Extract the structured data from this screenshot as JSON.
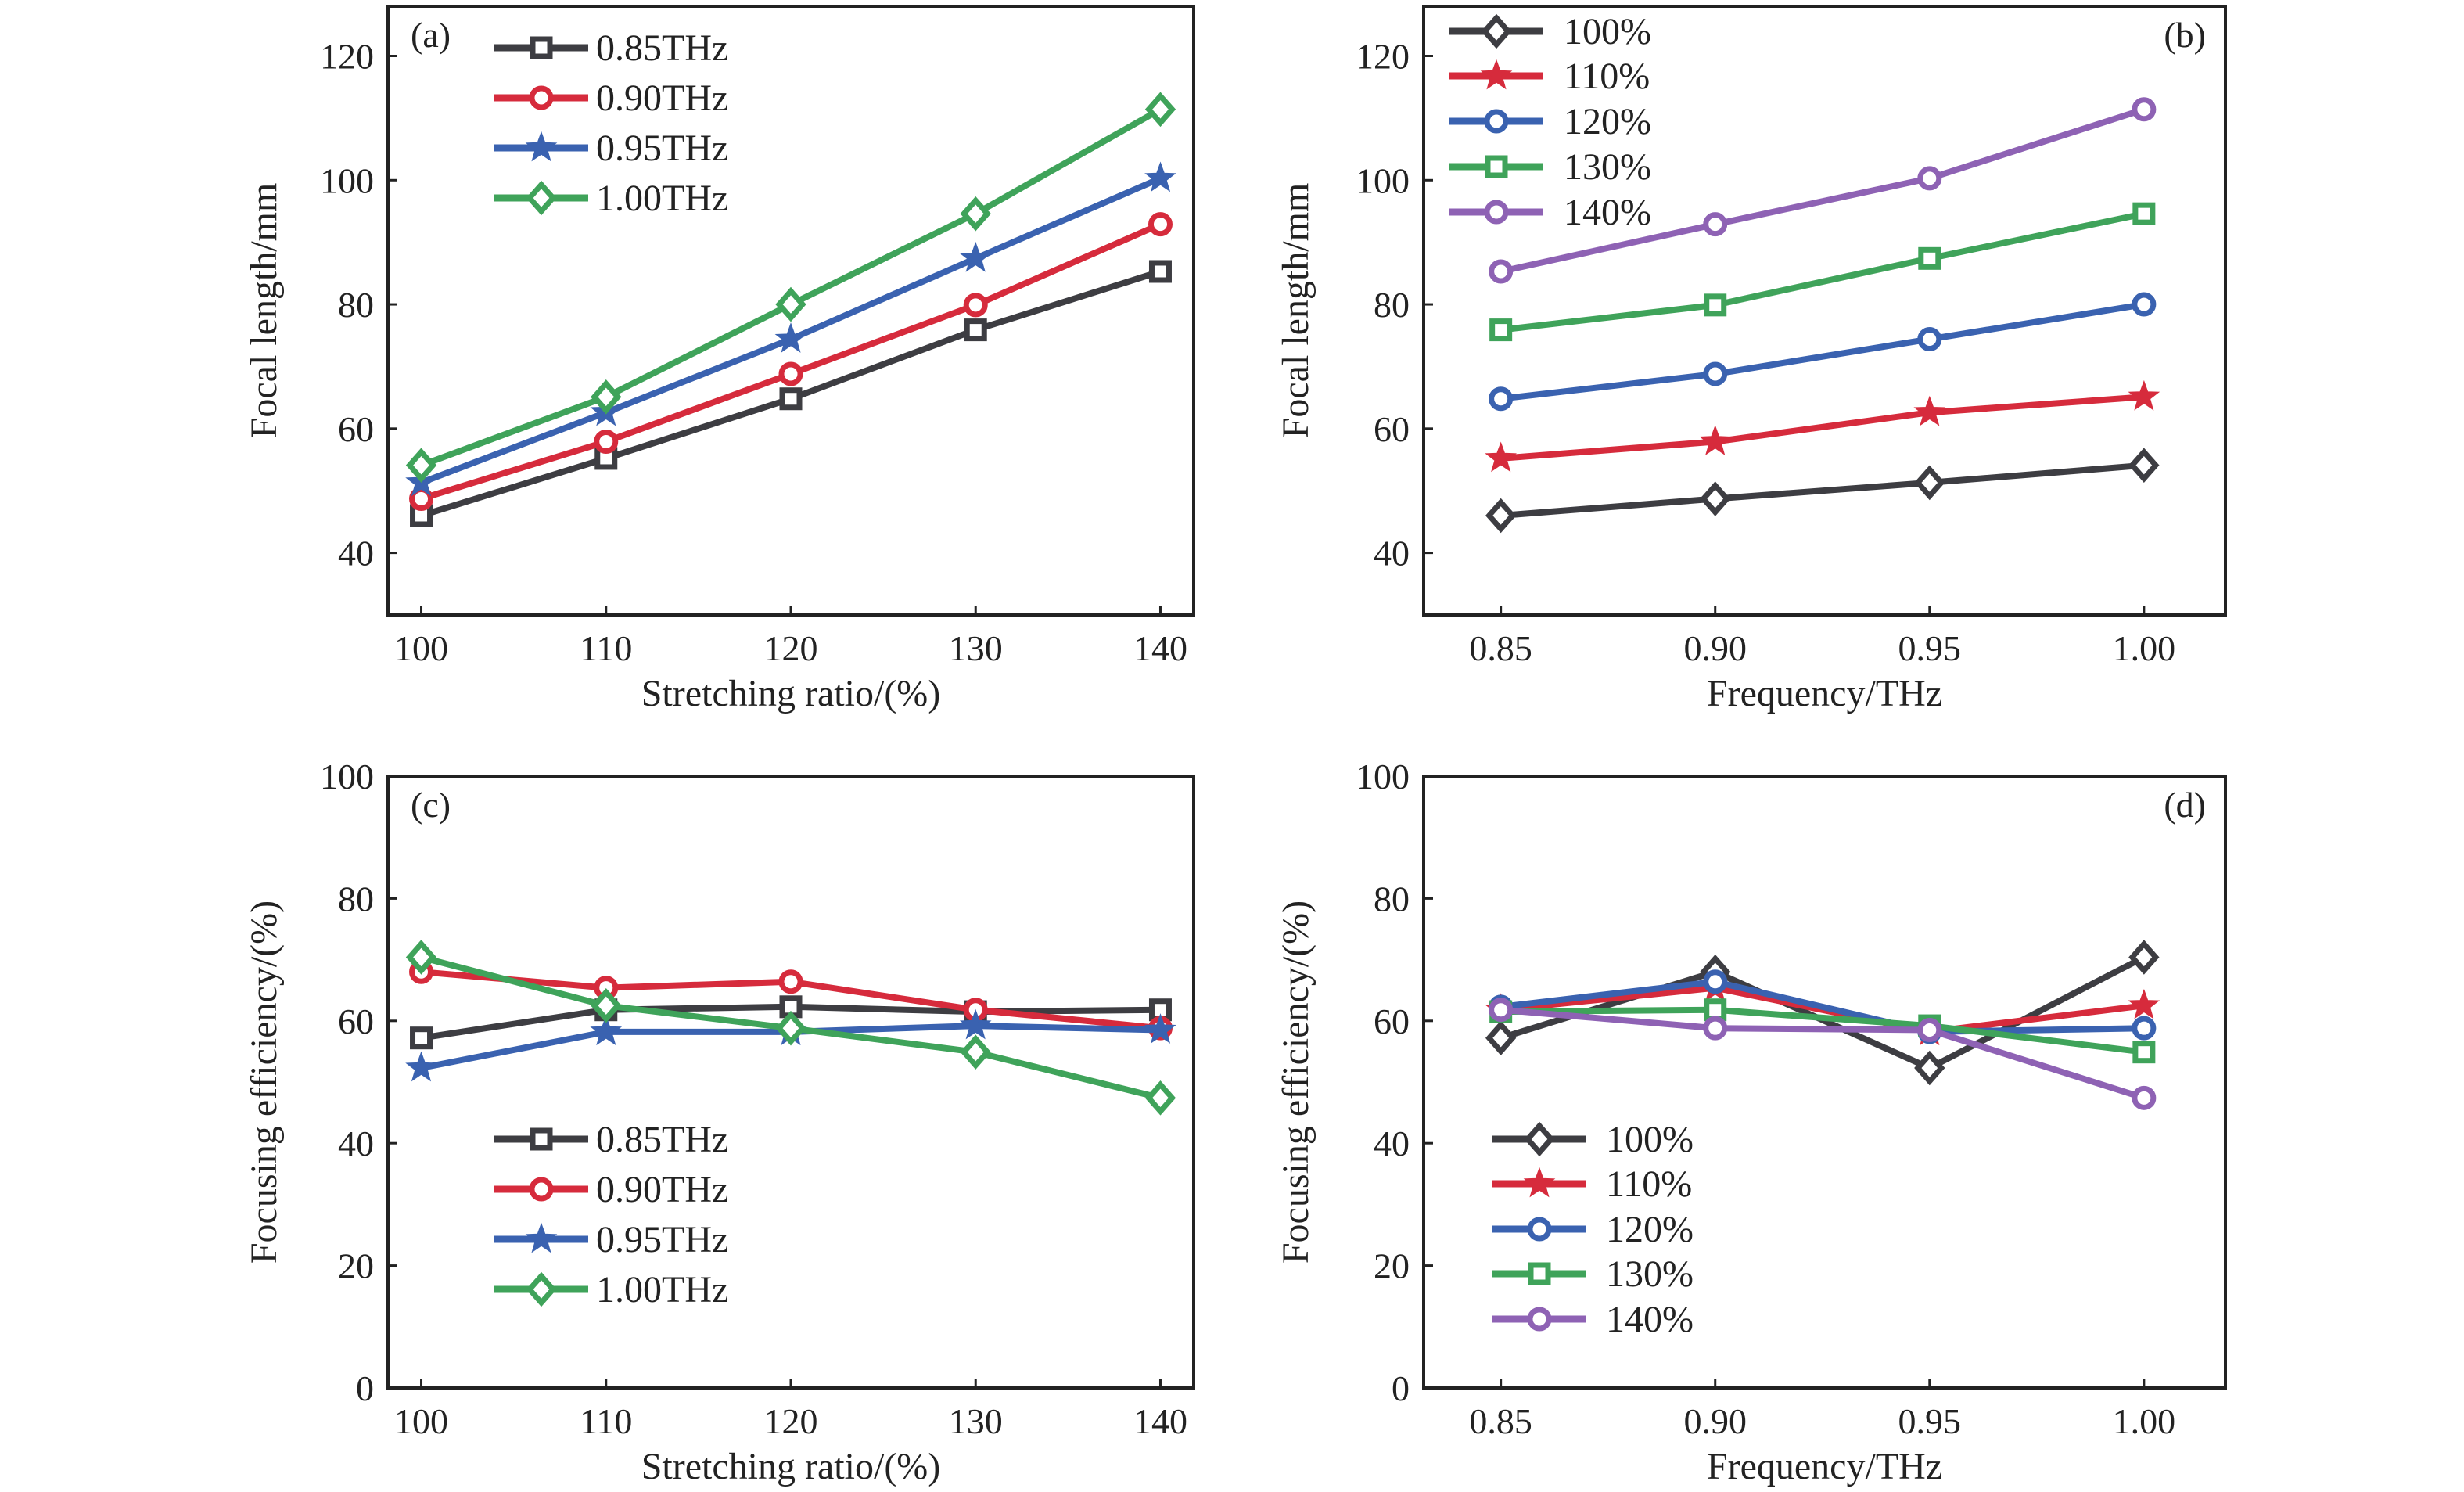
{
  "chart_data": [
    {
      "panel": "(a)",
      "type": "line",
      "xlabel": "Stretching ratio/(%)",
      "ylabel": "Focal length/mm",
      "x": [
        100,
        110,
        120,
        130,
        140
      ],
      "xticks": [
        "100",
        "110",
        "120",
        "130",
        "140"
      ],
      "yticks": [
        "40",
        "60",
        "80",
        "100",
        "120"
      ],
      "xlim": [
        98.2,
        141.8
      ],
      "ylim": [
        30,
        128
      ],
      "legend": "top-left",
      "series": [
        {
          "name": "0.85THz",
          "color": "#3d3d42",
          "marker": "square",
          "values": [
            46.0,
            55.2,
            64.8,
            75.9,
            85.3
          ]
        },
        {
          "name": "0.90THz",
          "color": "#d62b3c",
          "marker": "circle",
          "values": [
            48.7,
            57.9,
            68.8,
            79.9,
            92.9
          ]
        },
        {
          "name": "0.95THz",
          "color": "#3a62b0",
          "marker": "star",
          "values": [
            51.3,
            62.6,
            74.4,
            87.4,
            100.3
          ]
        },
        {
          "name": "1.00THz",
          "color": "#3fa35a",
          "marker": "diamond",
          "values": [
            54.1,
            65.1,
            80.0,
            94.6,
            111.4
          ]
        }
      ]
    },
    {
      "panel": "(b)",
      "type": "line",
      "xlabel": "Frequency/THz",
      "ylabel": "Focal length/mm",
      "x": [
        0.85,
        0.9,
        0.95,
        1.0
      ],
      "xticks": [
        "0.85",
        "0.90",
        "0.95",
        "1.00"
      ],
      "yticks": [
        "40",
        "60",
        "80",
        "100",
        "120"
      ],
      "xlim": [
        0.832,
        1.019
      ],
      "ylim": [
        30,
        128
      ],
      "legend": "top-left",
      "series": [
        {
          "name": "100%",
          "color": "#3d3d42",
          "marker": "diamond",
          "values": [
            46.0,
            48.7,
            51.3,
            54.1
          ]
        },
        {
          "name": "110%",
          "color": "#d62b3c",
          "marker": "star",
          "values": [
            55.2,
            57.9,
            62.6,
            65.1
          ]
        },
        {
          "name": "120%",
          "color": "#3a62b0",
          "marker": "circle",
          "values": [
            64.8,
            68.8,
            74.4,
            80.0
          ]
        },
        {
          "name": "130%",
          "color": "#3fa35a",
          "marker": "square",
          "values": [
            75.9,
            79.9,
            87.4,
            94.6
          ]
        },
        {
          "name": "140%",
          "color": "#8e62b4",
          "marker": "circle",
          "values": [
            85.3,
            92.9,
            100.3,
            111.4
          ]
        }
      ]
    },
    {
      "panel": "(c)",
      "type": "line",
      "xlabel": "Stretching ratio/(%)",
      "ylabel": "Focusing efficiency/(%)",
      "x": [
        100,
        110,
        120,
        130,
        140
      ],
      "xticks": [
        "100",
        "110",
        "120",
        "130",
        "140"
      ],
      "yticks": [
        "0",
        "20",
        "40",
        "60",
        "80",
        "100"
      ],
      "xlim": [
        98.2,
        141.8
      ],
      "ylim": [
        0,
        100
      ],
      "legend": "bottom-left",
      "series": [
        {
          "name": "0.85THz",
          "color": "#3d3d42",
          "marker": "square",
          "values": [
            57.2,
            61.8,
            62.3,
            61.5,
            61.8
          ]
        },
        {
          "name": "0.90THz",
          "color": "#d62b3c",
          "marker": "circle",
          "values": [
            68.0,
            65.4,
            66.4,
            61.8,
            58.8
          ]
        },
        {
          "name": "0.95THz",
          "color": "#3a62b0",
          "marker": "star",
          "values": [
            52.3,
            58.2,
            58.2,
            59.2,
            58.5
          ]
        },
        {
          "name": "1.00THz",
          "color": "#3fa35a",
          "marker": "diamond",
          "values": [
            70.4,
            62.5,
            58.8,
            54.9,
            47.4
          ]
        }
      ]
    },
    {
      "panel": "(d)",
      "type": "line",
      "xlabel": "Frequency/THz",
      "ylabel": "Focusing efficiency/(%)",
      "x": [
        0.85,
        0.9,
        0.95,
        1.0
      ],
      "xticks": [
        "0.85",
        "0.90",
        "0.95",
        "1.00"
      ],
      "yticks": [
        "0",
        "20",
        "40",
        "60",
        "80",
        "100"
      ],
      "xlim": [
        0.832,
        1.019
      ],
      "ylim": [
        0,
        100
      ],
      "legend": "bottom-left",
      "series": [
        {
          "name": "100%",
          "color": "#3d3d42",
          "marker": "diamond",
          "values": [
            57.2,
            68.0,
            52.3,
            70.4
          ]
        },
        {
          "name": "110%",
          "color": "#d62b3c",
          "marker": "star",
          "values": [
            61.8,
            65.4,
            58.2,
            62.5
          ]
        },
        {
          "name": "120%",
          "color": "#3a62b0",
          "marker": "circle",
          "values": [
            62.3,
            66.4,
            58.2,
            58.8
          ]
        },
        {
          "name": "130%",
          "color": "#3fa35a",
          "marker": "square",
          "values": [
            61.5,
            61.8,
            59.2,
            54.9
          ]
        },
        {
          "name": "140%",
          "color": "#8e62b4",
          "marker": "circle",
          "values": [
            61.8,
            58.8,
            58.5,
            47.4
          ]
        }
      ]
    }
  ]
}
